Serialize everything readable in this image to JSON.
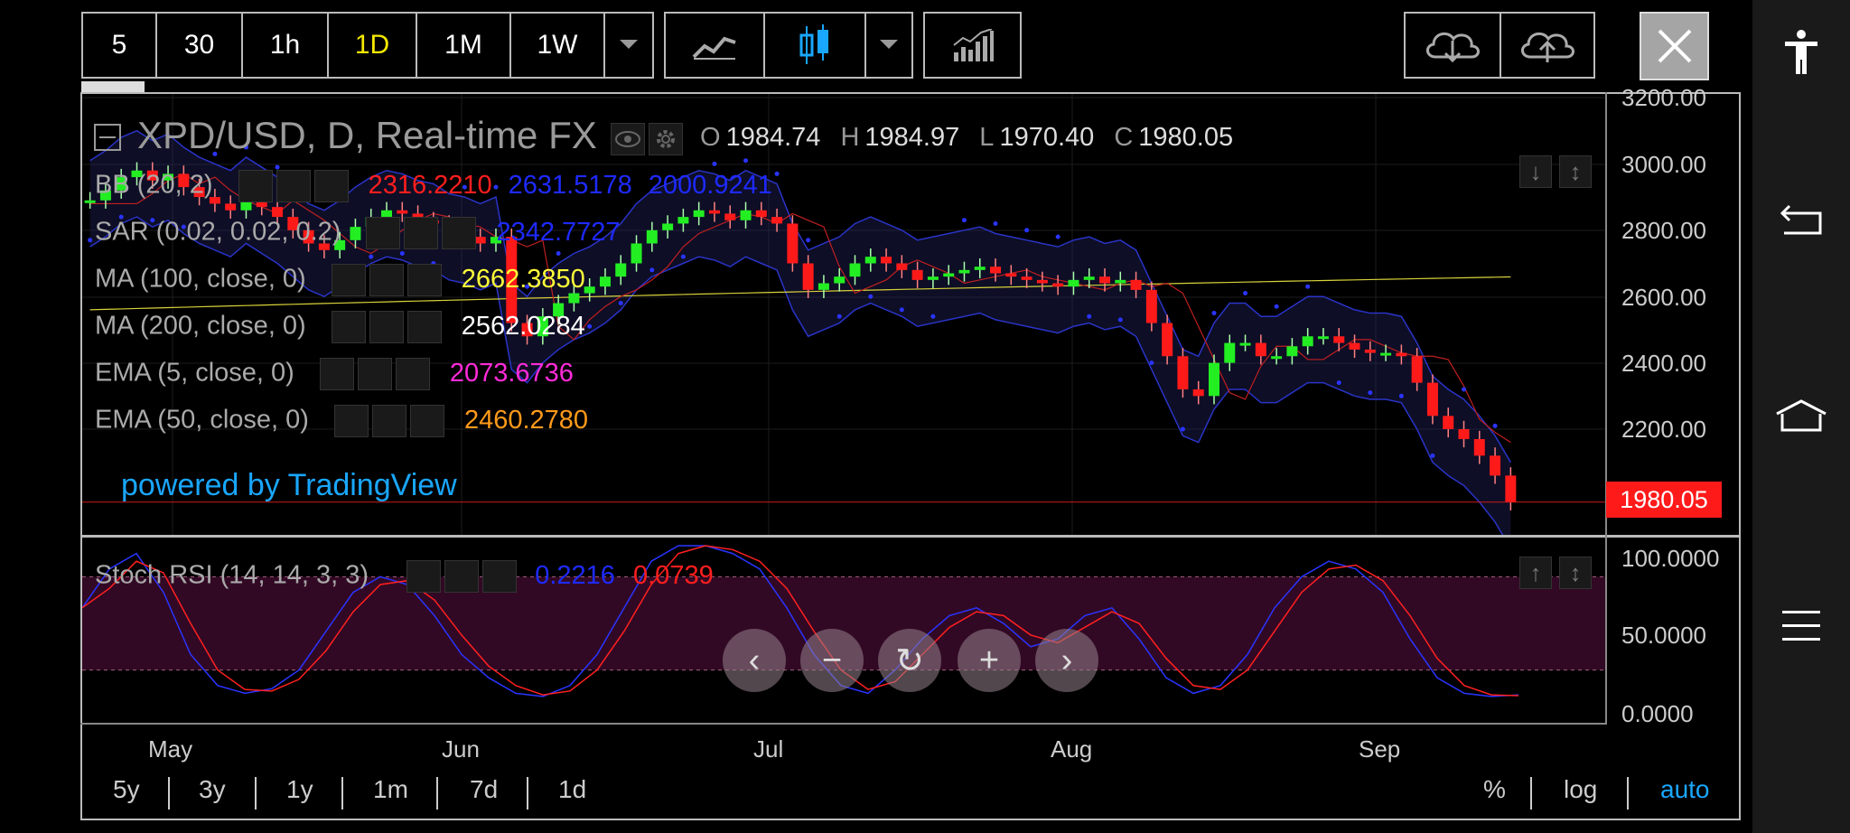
{
  "toolbar": {
    "intervals": [
      "5",
      "30",
      "1h",
      "1D",
      "1M",
      "1W"
    ],
    "active_interval": "1D"
  },
  "chart": {
    "title": "XPD/USD, D, Real-time FX",
    "ohlc": {
      "o_label": "O",
      "o": "1984.74",
      "h_label": "H",
      "h": "1984.97",
      "l_label": "L",
      "l": "1970.40",
      "c_label": "C",
      "c": "1980.05"
    },
    "indicators": [
      {
        "name": "BB (20, 2)",
        "values": [
          "2316.2210",
          "2631.5178",
          "2000.9241"
        ],
        "colors": [
          "#ff1e1e",
          "#1e2aff",
          "#1e2aff"
        ]
      },
      {
        "name": "SAR (0.02, 0.02, 0.2)",
        "values": [
          "2342.7727"
        ],
        "colors": [
          "#1e2aff"
        ]
      },
      {
        "name": "MA (100, close, 0)",
        "values": [
          "2662.3850"
        ],
        "colors": [
          "#ffff3a"
        ]
      },
      {
        "name": "MA (200, close, 0)",
        "values": [
          "2562.0284"
        ],
        "colors": [
          "#ffffff"
        ]
      },
      {
        "name": "EMA (5, close, 0)",
        "values": [
          "2073.6736"
        ],
        "colors": [
          "#ff2bd8"
        ]
      },
      {
        "name": "EMA (50, close, 0)",
        "values": [
          "2460.2780"
        ],
        "colors": [
          "#ff9a1a"
        ]
      }
    ],
    "watermark": "powered by TradingView",
    "price_axis": [
      "3200.00",
      "3000.00",
      "2800.00",
      "2600.00",
      "2400.00",
      "2200.00"
    ],
    "last_price": "1980.05",
    "oscillator": {
      "name": "Stoch RSI (14, 14, 3, 3)",
      "k": "0.2216",
      "d": "0.0739"
    },
    "osc_axis": [
      "100.0000",
      "50.0000",
      "0.0000"
    ],
    "time_axis": [
      "May",
      "Jun",
      "Jul",
      "Aug",
      "Sep"
    ]
  },
  "ranges": [
    "5y",
    "3y",
    "1y",
    "1m",
    "7d",
    "1d"
  ],
  "scale_options": {
    "percent": "%",
    "log": "log",
    "auto": "auto"
  },
  "colors": {
    "up": "#22ee22",
    "down": "#ff1a1a",
    "accent": "#19a7ff",
    "active": "#f6ea00"
  }
}
